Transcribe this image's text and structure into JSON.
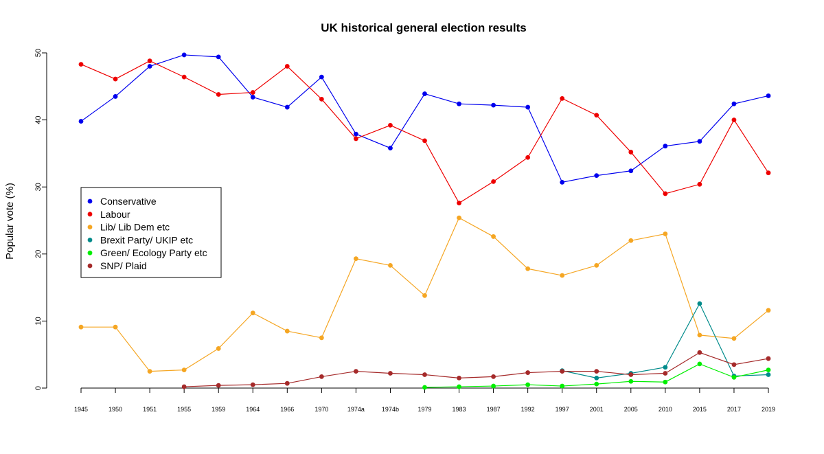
{
  "chart_data": {
    "type": "line",
    "title": "UK historical general election results",
    "xlabel": "",
    "ylabel": "Popular vote (%)",
    "ylim": [
      0,
      50
    ],
    "yticks": [
      0,
      10,
      20,
      30,
      40,
      50
    ],
    "categories": [
      "1945",
      "1950",
      "1951",
      "1955",
      "1959",
      "1964",
      "1966",
      "1970",
      "1974a",
      "1974b",
      "1979",
      "1983",
      "1987",
      "1992",
      "1997",
      "2001",
      "2005",
      "2010",
      "2015",
      "2017",
      "2019"
    ],
    "legend_position": "left",
    "series": [
      {
        "name": "Conservative",
        "color": "#0000ee",
        "values": [
          39.8,
          43.5,
          48.0,
          49.7,
          49.4,
          43.4,
          41.9,
          46.4,
          37.9,
          35.8,
          43.9,
          42.4,
          42.2,
          41.9,
          30.7,
          31.7,
          32.4,
          36.1,
          36.8,
          42.4,
          43.6
        ]
      },
      {
        "name": "Labour",
        "color": "#ee0000",
        "values": [
          48.3,
          46.1,
          48.8,
          46.4,
          43.8,
          44.1,
          48.0,
          43.1,
          37.2,
          39.2,
          36.9,
          27.6,
          30.8,
          34.4,
          43.2,
          40.7,
          35.2,
          29.0,
          30.4,
          40.0,
          32.1
        ]
      },
      {
        "name": "Lib/ Lib Dem etc",
        "color": "#f5a623",
        "values": [
          9.1,
          9.1,
          2.5,
          2.7,
          5.9,
          11.2,
          8.5,
          7.5,
          19.3,
          18.3,
          13.8,
          25.4,
          22.6,
          17.8,
          16.8,
          18.3,
          22.0,
          23.0,
          7.9,
          7.4,
          11.6
        ]
      },
      {
        "name": "Brexit Party/ UKIP etc",
        "color": "#008b8b",
        "values": [
          null,
          null,
          null,
          null,
          null,
          null,
          null,
          null,
          null,
          null,
          null,
          null,
          null,
          null,
          2.6,
          1.5,
          2.2,
          3.1,
          12.6,
          1.8,
          2.0
        ]
      },
      {
        "name": "Green/ Ecology Party etc",
        "color": "#00ee00",
        "values": [
          null,
          null,
          null,
          null,
          null,
          null,
          null,
          null,
          null,
          null,
          0.1,
          0.2,
          0.3,
          0.5,
          0.3,
          0.6,
          1.0,
          0.9,
          3.6,
          1.6,
          2.7
        ]
      },
      {
        "name": "SNP/ Plaid",
        "color": "#a52a2a",
        "values": [
          null,
          null,
          null,
          0.2,
          0.4,
          0.5,
          0.7,
          1.7,
          2.5,
          2.2,
          2.0,
          1.5,
          1.7,
          2.3,
          2.5,
          2.5,
          2.0,
          2.2,
          5.3,
          3.5,
          4.4
        ]
      }
    ]
  }
}
